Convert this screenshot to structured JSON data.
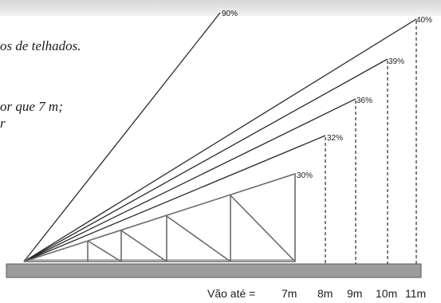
{
  "captions": {
    "line1": "os de telhados.",
    "line2": "or que 7 m;",
    "line3": "r"
  },
  "diagram": {
    "slopes": [
      {
        "pct": "90%",
        "span": ""
      },
      {
        "pct": "40%",
        "span": "11m"
      },
      {
        "pct": "39%",
        "span": "10m"
      },
      {
        "pct": "36%",
        "span": "9m"
      },
      {
        "pct": "32%",
        "span": "8m"
      },
      {
        "pct": "30%",
        "span": "7m"
      }
    ],
    "span_prefix": "Vão até ="
  },
  "colors": {
    "lines": "#2a2a2a",
    "base_bar": "#9c9c9c",
    "truss": "#6a6a6a"
  }
}
